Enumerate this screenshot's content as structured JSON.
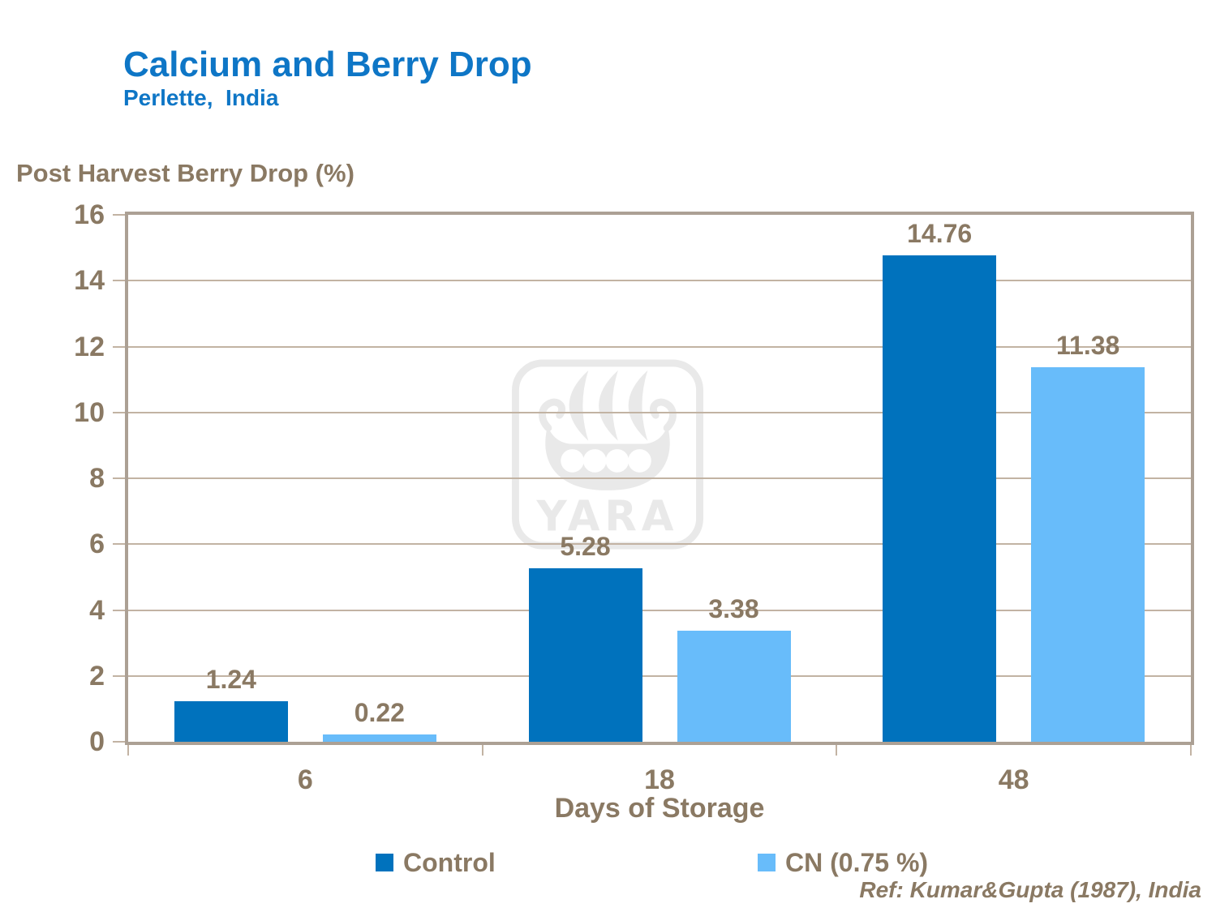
{
  "header": {
    "title": "Calcium and Berry Drop",
    "subtitle": "Perlette,  India"
  },
  "axis_title": "Post Harvest Berry Drop (%)",
  "xaxis_title": "Days of Storage",
  "ref_note": "Ref: Kumar&Gupta (1987), India",
  "watermark_text": "YARA",
  "colors": {
    "title_blue": "#0E76C6",
    "text_brown": "#8A7963",
    "plot_border": "#ACA094",
    "gridline": "#C2B3A3",
    "control_bar": "#0072BD",
    "cn_bar": "#68BCFA",
    "watermark_gray": "#E9E9E9"
  },
  "chart_data": {
    "type": "bar",
    "title": "Calcium and Berry Drop",
    "subtitle": "Perlette, India",
    "ylabel": "Post Harvest Berry Drop (%)",
    "xlabel": "Days of Storage",
    "categories": [
      "6",
      "18",
      "48"
    ],
    "series": [
      {
        "name": "Control",
        "color": "#0072BD",
        "values": [
          1.24,
          5.28,
          14.76
        ],
        "labels": [
          "1.24",
          "5.28",
          "14.76"
        ]
      },
      {
        "name": "CN (0.75 %)",
        "color": "#68BCFA",
        "values": [
          0.22,
          3.38,
          11.38
        ],
        "labels": [
          "0.22",
          "3.38",
          "11.38"
        ]
      }
    ],
    "ylim": [
      0,
      16
    ],
    "ytick_step": 2,
    "yticks": [
      "0",
      "2",
      "4",
      "6",
      "8",
      "10",
      "12",
      "14",
      "16"
    ],
    "grid": "horizontal",
    "legend_position": "bottom"
  },
  "legend": {
    "items": [
      {
        "label": "Control",
        "color": "#0072BD"
      },
      {
        "label": "CN (0.75 %)",
        "color": "#68BCFA"
      }
    ]
  }
}
